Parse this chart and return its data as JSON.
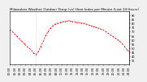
{
  "title": "Milwaukee Weather Outdoor Temp (vs) Heat Index per Minute (Last 24 Hours)",
  "background_color": "#f0f0f0",
  "plot_bg_color": "#ffffff",
  "line_color": "#ff0000",
  "vline_x": 0.22,
  "ylim": [
    30,
    95
  ],
  "yticks": [
    35,
    40,
    45,
    50,
    55,
    60,
    65,
    70,
    75,
    80,
    85,
    90
  ],
  "x_values": [
    0.0,
    0.02,
    0.04,
    0.06,
    0.08,
    0.1,
    0.12,
    0.14,
    0.16,
    0.18,
    0.2,
    0.22,
    0.24,
    0.26,
    0.28,
    0.3,
    0.32,
    0.34,
    0.36,
    0.38,
    0.4,
    0.42,
    0.44,
    0.46,
    0.48,
    0.5,
    0.52,
    0.54,
    0.56,
    0.58,
    0.6,
    0.62,
    0.64,
    0.66,
    0.68,
    0.7,
    0.72,
    0.74,
    0.76,
    0.78,
    0.8,
    0.82,
    0.84,
    0.86,
    0.88,
    0.9,
    0.92,
    0.94,
    0.96,
    0.98,
    1.0
  ],
  "y_values": [
    72,
    70,
    67,
    64,
    61,
    58,
    55,
    52,
    50,
    47,
    44,
    42,
    46,
    52,
    58,
    65,
    70,
    74,
    77,
    79,
    80,
    81,
    82,
    82,
    83,
    83,
    82,
    82,
    81,
    81,
    80,
    80,
    79,
    78,
    77,
    76,
    75,
    74,
    73,
    72,
    70,
    68,
    66,
    64,
    62,
    60,
    58,
    55,
    52,
    48,
    45
  ],
  "xlim": [
    0.0,
    1.0
  ],
  "title_fontsize": 3.0,
  "tick_fontsize": 2.5,
  "line_width": 0.5,
  "marker_size": 0.7,
  "n_xticks": 24
}
